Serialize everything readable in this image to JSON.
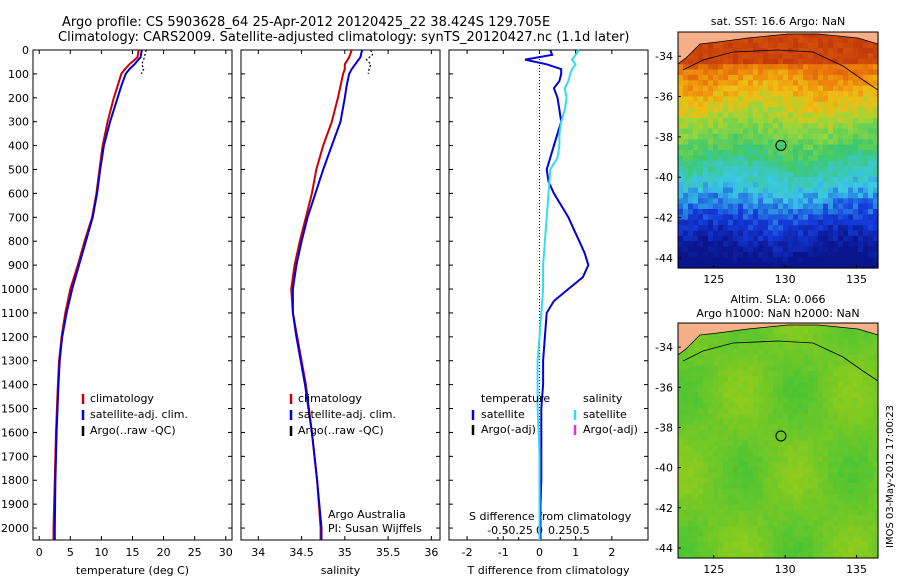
{
  "header": {
    "line1": "Argo profile: CS 5903628_64 25-Apr-2012 20120425_22 38.424S 129.705E",
    "line2": "Climatology: CARS2009. Satellite-adjusted climatology: synTS_20120427.nc (1.1d later)"
  },
  "colors": {
    "climatology": "#cc0000",
    "satellite": "#0000dd",
    "argo": "#000000",
    "salinity_diff": "#33ddee",
    "argo_salt_adj": "#dd33dd",
    "land": "#f5b08a"
  },
  "chart_data": [
    {
      "type": "line",
      "panel": "temperature",
      "xlabel": "temperature (deg C)",
      "xlim": [
        -1,
        31
      ],
      "xticks": [
        0,
        5,
        10,
        15,
        20,
        25,
        30
      ],
      "ylim": [
        0,
        2050
      ],
      "yticks": [
        0,
        100,
        200,
        300,
        400,
        500,
        600,
        700,
        800,
        900,
        1000,
        1100,
        1200,
        1300,
        1400,
        1500,
        1600,
        1700,
        1800,
        1900,
        2000
      ],
      "legend": [
        "climatology",
        "satellite-adj. clim.",
        "Argo(..raw -QC)"
      ],
      "series": [
        {
          "name": "climatology",
          "color": "#cc0000",
          "depth": [
            0,
            30,
            60,
            80,
            100,
            150,
            200,
            300,
            400,
            500,
            600,
            700,
            800,
            900,
            1000,
            1100,
            1200,
            1300,
            1400,
            1600,
            1800,
            2000,
            2050
          ],
          "values": [
            16.0,
            15.8,
            14.5,
            13.8,
            13.2,
            12.6,
            12.0,
            11.0,
            10.2,
            9.7,
            9.2,
            8.5,
            7.3,
            6.2,
            5.0,
            4.2,
            3.6,
            3.2,
            3.0,
            2.7,
            2.5,
            2.3,
            2.3
          ]
        },
        {
          "name": "satellite-adj. clim.",
          "color": "#0000dd",
          "depth": [
            0,
            30,
            60,
            80,
            100,
            150,
            200,
            300,
            400,
            500,
            600,
            700,
            800,
            900,
            1000,
            1100,
            1200,
            1300,
            1400,
            1600,
            1800,
            2000,
            2050
          ],
          "values": [
            16.5,
            16.3,
            15.3,
            14.5,
            13.9,
            13.2,
            12.6,
            11.4,
            10.4,
            9.8,
            9.3,
            8.6,
            7.5,
            6.4,
            5.3,
            4.4,
            3.7,
            3.3,
            3.1,
            2.8,
            2.6,
            2.5,
            2.5
          ]
        },
        {
          "name": "Argo(..raw -QC)",
          "color": "#000000",
          "dash": true,
          "depth": [
            0,
            20,
            40,
            60,
            80,
            100
          ],
          "values": [
            17.2,
            17.0,
            16.8,
            16.5,
            16.8,
            16.4
          ]
        }
      ]
    },
    {
      "type": "line",
      "panel": "salinity",
      "xlabel": "salinity",
      "xlim": [
        33.8,
        36.1
      ],
      "xticks": [
        34,
        34.5,
        35,
        35.5,
        36
      ],
      "ylim": [
        0,
        2050
      ],
      "legend": [
        "climatology",
        "satellite-adj. clim.",
        "Argo(..raw -QC)"
      ],
      "annotation": [
        "Argo Australia",
        "PI: Susan Wijffels"
      ],
      "series": [
        {
          "name": "climatology",
          "color": "#cc0000",
          "depth": [
            0,
            30,
            60,
            80,
            100,
            150,
            200,
            300,
            400,
            500,
            600,
            700,
            800,
            900,
            1000,
            1100,
            1200,
            1400,
            1600,
            1800,
            2000,
            2050
          ],
          "values": [
            35.08,
            35.05,
            35.0,
            35.0,
            34.98,
            34.95,
            34.92,
            34.85,
            34.75,
            34.67,
            34.62,
            34.55,
            34.48,
            34.42,
            34.38,
            34.4,
            34.45,
            34.55,
            34.62,
            34.68,
            34.72,
            34.72
          ]
        },
        {
          "name": "satellite-adj. clim.",
          "color": "#0000dd",
          "depth": [
            0,
            30,
            60,
            80,
            100,
            150,
            200,
            300,
            400,
            500,
            600,
            700,
            800,
            900,
            1000,
            1100,
            1200,
            1400,
            1600,
            1800,
            2000,
            2050
          ],
          "values": [
            35.2,
            35.18,
            35.12,
            35.08,
            35.05,
            35.02,
            35.0,
            34.95,
            34.85,
            34.75,
            34.66,
            34.57,
            34.5,
            34.44,
            34.4,
            34.4,
            34.44,
            34.54,
            34.62,
            34.68,
            34.73,
            34.73
          ]
        },
        {
          "name": "Argo(..raw -QC)",
          "color": "#000000",
          "dash": true,
          "depth": [
            0,
            20,
            40,
            60,
            80,
            100
          ],
          "values": [
            35.3,
            35.32,
            35.25,
            35.3,
            35.28,
            35.27
          ]
        }
      ]
    },
    {
      "type": "line",
      "panel": "difference",
      "xlabel": "T difference from climatology",
      "xlabel2": "S difference from climatology",
      "xlim": [
        -2.5,
        3.0
      ],
      "xticks": [
        -2,
        -1,
        0,
        1,
        2
      ],
      "xticks2": [
        -0.5,
        -0.25,
        0,
        0.25,
        0.5
      ],
      "ylim": [
        0,
        2050
      ],
      "legend": {
        "temperature": {
          "title": "temperature",
          "items": [
            "satellite",
            "Argo(-adj)"
          ]
        },
        "salinity": {
          "title": "salinity",
          "items": [
            "satellite",
            "Argo(-adj)"
          ]
        }
      },
      "series": [
        {
          "name": "temperature satellite",
          "color": "#0000dd",
          "depth": [
            0,
            20,
            40,
            60,
            80,
            100,
            130,
            160,
            200,
            250,
            300,
            350,
            400,
            450,
            500,
            550,
            600,
            650,
            700,
            750,
            800,
            850,
            900,
            950,
            1000,
            1050,
            1100,
            1200,
            1300,
            1400,
            1500,
            1600,
            1700,
            1800,
            1900,
            2000,
            2050
          ],
          "values": [
            0.3,
            0.35,
            -0.4,
            0.2,
            0.6,
            0.6,
            0.55,
            0.4,
            0.5,
            0.55,
            0.6,
            0.5,
            0.4,
            0.3,
            0.2,
            0.25,
            0.4,
            0.6,
            0.8,
            0.95,
            1.1,
            1.25,
            1.35,
            1.2,
            0.8,
            0.4,
            0.2,
            0.15,
            0.1,
            0.1,
            0.05,
            0.05,
            0.05,
            0.05,
            0.03,
            0.03,
            0.03
          ]
        },
        {
          "name": "salinity satellite",
          "color": "#33ddee",
          "depth": [
            0,
            20,
            40,
            60,
            80,
            100,
            130,
            160,
            200,
            250,
            300,
            350,
            400,
            450,
            500,
            600,
            700,
            800,
            900,
            1000,
            1100,
            1200,
            1300,
            1400,
            1500,
            1600,
            1700,
            1800,
            1900,
            2000,
            2050
          ],
          "values": [
            1.1,
            1.0,
            0.9,
            1.0,
            0.9,
            0.85,
            0.8,
            0.7,
            0.75,
            0.7,
            0.6,
            0.55,
            0.55,
            0.5,
            0.3,
            0.25,
            0.2,
            0.15,
            0.1,
            0.1,
            0.05,
            0.0,
            -0.05,
            -0.05,
            -0.05,
            -0.02,
            0.0,
            0.0,
            0.0,
            0.0,
            0.0
          ]
        }
      ]
    },
    {
      "type": "heatmap",
      "panel": "sst-map",
      "title": "sat. SST: 16.6 Argo: NaN",
      "xticks": [
        125,
        130,
        135
      ],
      "yticks": [
        -34,
        -36,
        -38,
        -40,
        -42,
        -44
      ],
      "xlim": [
        122.5,
        136.5
      ],
      "ylim": [
        -44.5,
        -32.8
      ],
      "marker": {
        "lon": 129.705,
        "lat": -38.424
      }
    },
    {
      "type": "heatmap",
      "panel": "sla-map",
      "title": "Altim. SLA: 0.066",
      "subtitle": "Argo h1000: NaN h2000: NaN",
      "xticks": [
        125,
        130,
        135
      ],
      "yticks": [
        -34,
        -36,
        -38,
        -40,
        -42,
        -44
      ],
      "xlim": [
        122.5,
        136.5
      ],
      "ylim": [
        -44.5,
        -32.8
      ],
      "marker": {
        "lon": 129.705,
        "lat": -38.424
      }
    }
  ],
  "footer": {
    "stamp": "IMOS 03-May-2012 17:00:23"
  }
}
